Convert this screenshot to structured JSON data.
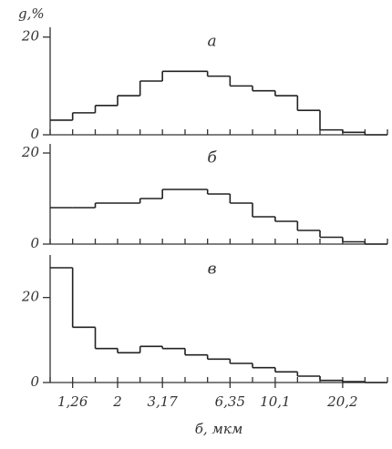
{
  "chart_data": [
    {
      "type": "histogram",
      "ylabel": "g,%",
      "label": "а",
      "bins": [
        1,
        1.26,
        1.59,
        2,
        2.52,
        3.17,
        4,
        5.04,
        6.35,
        8,
        10.1,
        12.7,
        16,
        20.2,
        25.4,
        32
      ],
      "values": [
        3,
        4.5,
        6,
        8,
        11,
        13,
        13,
        12,
        10,
        9,
        8,
        5,
        1,
        0.5,
        0
      ],
      "xlim": [
        1,
        32
      ],
      "xlog": true,
      "ylim": [
        0,
        22
      ],
      "yticks": [
        0,
        20
      ],
      "color": "#222"
    },
    {
      "type": "histogram",
      "label": "б",
      "bins": [
        1,
        1.26,
        1.59,
        2,
        2.52,
        3.17,
        4,
        5.04,
        6.35,
        8,
        10.1,
        12.7,
        16,
        20.2,
        25.4,
        32
      ],
      "values": [
        8,
        8,
        9,
        9,
        10,
        12,
        12,
        11,
        9,
        6,
        5,
        3,
        1.5,
        0.5,
        0
      ],
      "xlim": [
        1,
        32
      ],
      "xlog": true,
      "ylim": [
        0,
        22
      ],
      "yticks": [
        0,
        20
      ],
      "color": "#222"
    },
    {
      "type": "histogram",
      "label": "в",
      "xlabel": "б, мкм",
      "bins": [
        1,
        1.26,
        1.59,
        2,
        2.52,
        3.17,
        4,
        5.04,
        6.35,
        8,
        10.1,
        12.7,
        16,
        20.2,
        25.4,
        32
      ],
      "values": [
        27,
        13,
        8,
        7,
        8.5,
        8,
        6.5,
        5.5,
        4.5,
        3.5,
        2.5,
        1.5,
        0.5,
        0.2,
        0
      ],
      "xlim": [
        1,
        32
      ],
      "xlog": true,
      "ylim": [
        0,
        30
      ],
      "yticks": [
        0,
        20
      ],
      "color": "#222",
      "xticks": [
        {
          "value": 1.26,
          "label": "1,26"
        },
        2,
        {
          "value": 3.17,
          "label": "3,17"
        },
        {
          "value": 6.35,
          "label": "6,35"
        },
        {
          "value": 10.1,
          "label": "10,1"
        },
        {
          "value": 20.2,
          "label": "20,2"
        }
      ]
    }
  ]
}
